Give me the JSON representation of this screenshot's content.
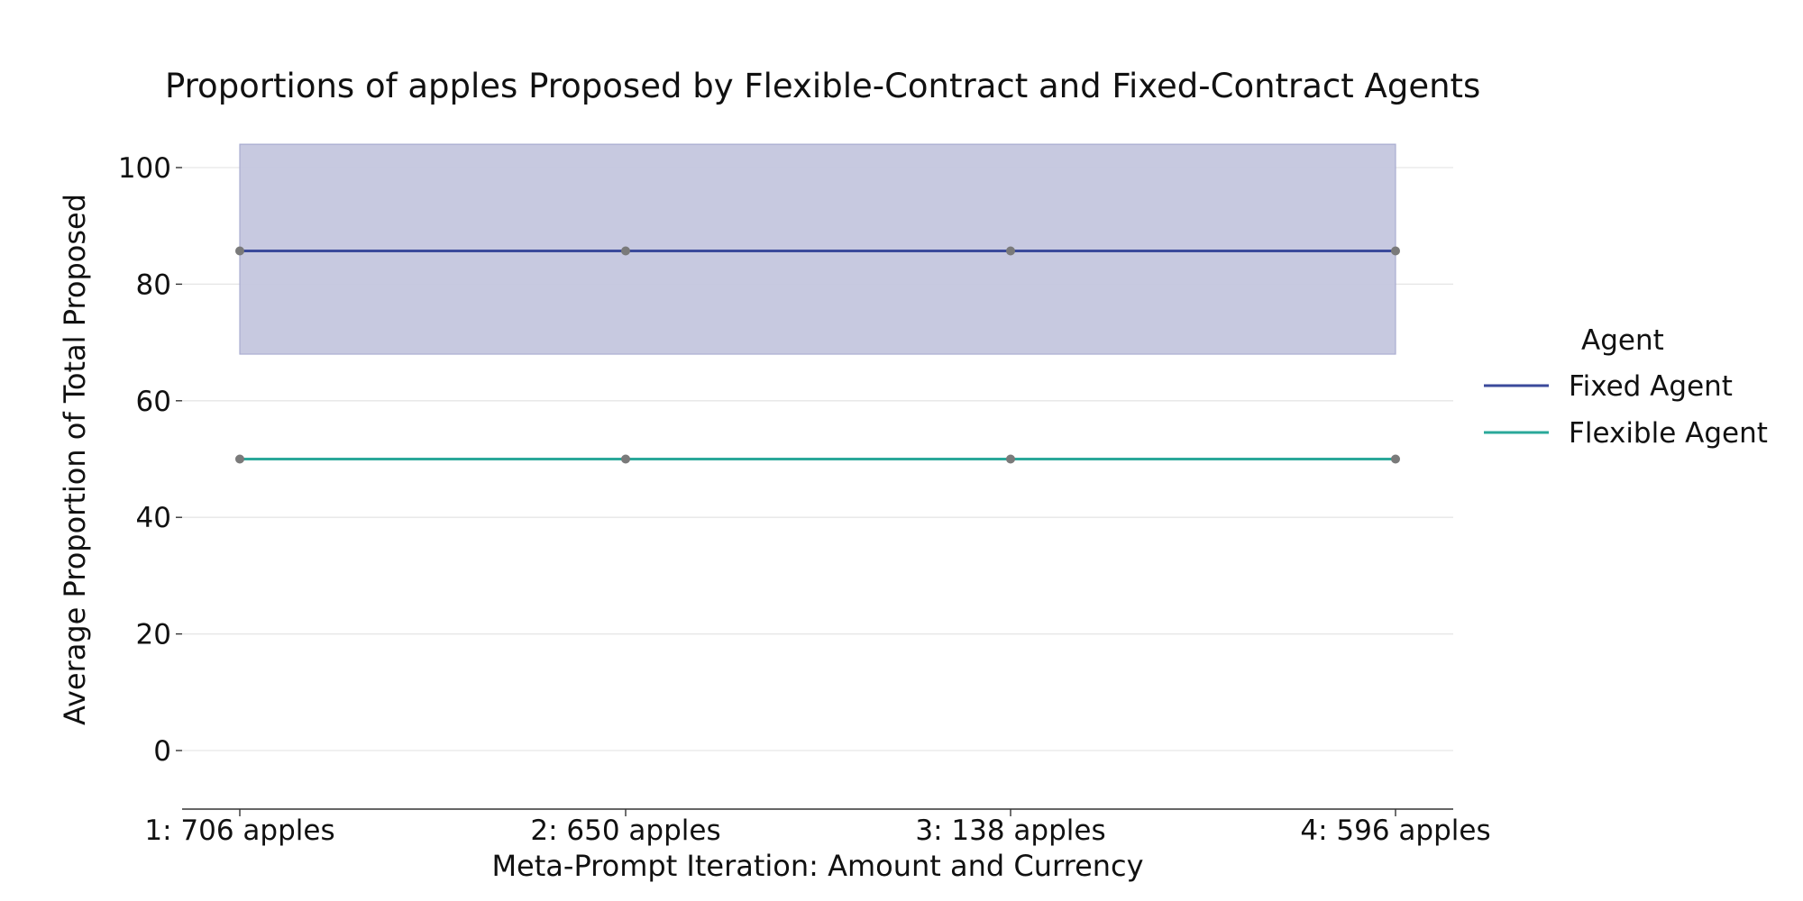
{
  "chart_data": {
    "type": "line",
    "title": "Proportions of apples Proposed by Flexible-Contract and Fixed-Contract Agents",
    "xlabel": "Meta-Prompt Iteration: Amount and Currency",
    "ylabel": "Average Proportion of Total Proposed",
    "categories": [
      "1: 706 apples",
      "2: 650 apples",
      "3: 138 apples",
      "4: 596 apples"
    ],
    "yticks": [
      0,
      20,
      40,
      60,
      80,
      100
    ],
    "ylim": [
      -10,
      104
    ],
    "grid": "horizontal",
    "legend": {
      "title": "Agent",
      "placement": "right"
    },
    "series": [
      {
        "name": "Fixed Agent",
        "values": [
          85.7,
          85.7,
          85.7,
          85.7
        ],
        "band_low": [
          68,
          68,
          68,
          68
        ],
        "band_high": [
          104,
          104,
          104,
          104
        ],
        "color": "#3b4a9b",
        "band_color": "#c4c6de"
      },
      {
        "name": "Flexible Agent",
        "values": [
          50,
          50,
          50,
          50
        ],
        "color": "#2aa89a"
      }
    ],
    "marker_color": "#7a7a7a"
  }
}
